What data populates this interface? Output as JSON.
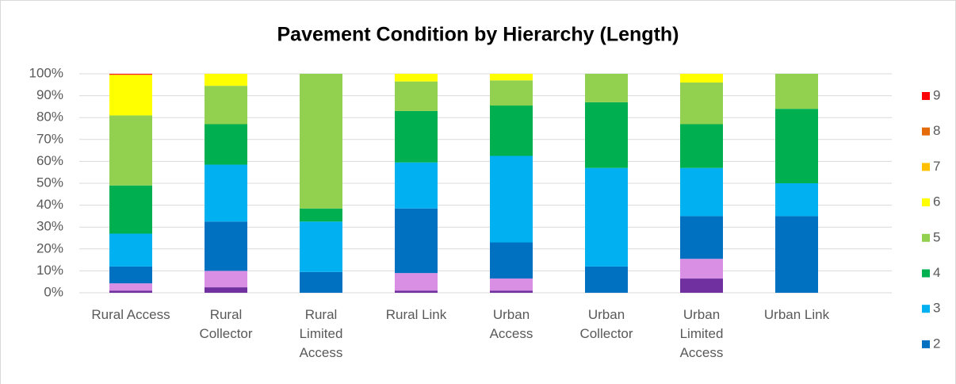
{
  "chart_data": {
    "type": "stacked_bar_100",
    "title": "Pavement Condition by Hierarchy (Length)",
    "categories": [
      "Rural Access",
      "Rural\nCollector",
      "Rural\nLimited\nAccess",
      "Rural Link",
      "Urban\nAccess",
      "Urban\nCollector",
      "Urban\nLimited\nAccess",
      "Urban Link"
    ],
    "series": [
      {
        "color": "#7030a0",
        "values": [
          1,
          2.5,
          0,
          1,
          1,
          0,
          6.5,
          0
        ]
      },
      {
        "color": "#d88fe4",
        "values": [
          3.3,
          7.5,
          0,
          8,
          5.5,
          0,
          9,
          0
        ]
      },
      {
        "name": "2",
        "color": "#0070c0",
        "values": [
          7.7,
          22.5,
          9.5,
          29.5,
          16.5,
          12,
          19.5,
          35
        ]
      },
      {
        "name": "3",
        "color": "#00b0f0",
        "values": [
          15,
          26,
          23,
          21,
          39.5,
          45,
          22,
          15
        ]
      },
      {
        "name": "4",
        "color": "#00b050",
        "values": [
          22,
          18.5,
          6,
          23.5,
          23,
          30,
          20,
          34
        ]
      },
      {
        "name": "5",
        "color": "#92d050",
        "values": [
          32,
          17.5,
          61.5,
          13.5,
          11.5,
          13,
          19,
          16
        ]
      },
      {
        "name": "6",
        "color": "#ffff00",
        "values": [
          18.5,
          5.5,
          0,
          3.5,
          3,
          0,
          4,
          0
        ]
      },
      {
        "name": "7",
        "color": "#ffc000",
        "values": [
          0,
          0,
          0,
          0,
          0,
          0,
          0,
          0
        ]
      },
      {
        "name": "8",
        "color": "#e36c09",
        "values": [
          0.2,
          0,
          0,
          0,
          0,
          0,
          0,
          0
        ]
      },
      {
        "name": "9",
        "color": "#ff0000",
        "values": [
          0.3,
          0,
          0,
          0,
          0,
          0,
          0,
          0
        ]
      }
    ],
    "ylim": [
      0,
      100
    ],
    "yticks": [
      {
        "value": 0,
        "label": "0%"
      },
      {
        "value": 10,
        "label": "10%"
      },
      {
        "value": 20,
        "label": "20%"
      },
      {
        "value": 30,
        "label": "30%"
      },
      {
        "value": 40,
        "label": "40%"
      },
      {
        "value": 50,
        "label": "50%"
      },
      {
        "value": 60,
        "label": "60%"
      },
      {
        "value": 70,
        "label": "70%"
      },
      {
        "value": 80,
        "label": "80%"
      },
      {
        "value": 90,
        "label": "90%"
      },
      {
        "value": 100,
        "label": "100%"
      }
    ],
    "grid": true,
    "legend": "right"
  }
}
